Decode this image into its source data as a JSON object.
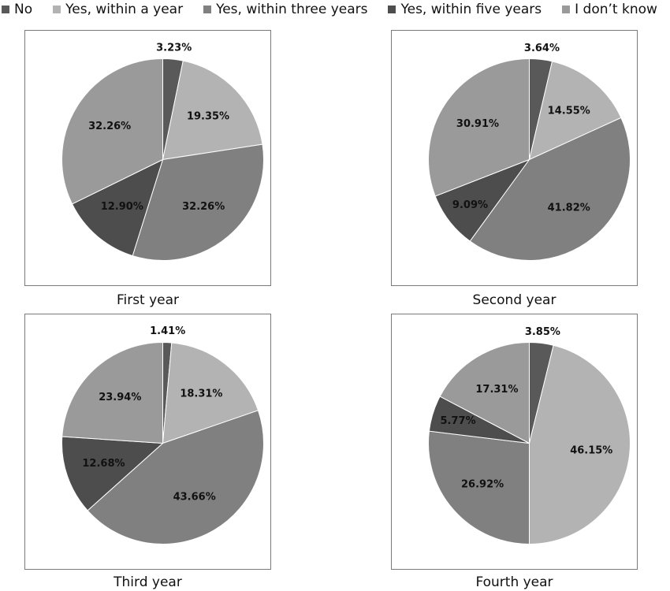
{
  "legend": [
    {
      "label": "No",
      "color": "#595959"
    },
    {
      "label": "Yes, within a year",
      "color": "#b3b3b3"
    },
    {
      "label": "Yes, within three years",
      "color": "#808080"
    },
    {
      "label": "Yes, within five years",
      "color": "#4d4d4d"
    },
    {
      "label": "I don’t know",
      "color": "#9a9a9a"
    }
  ],
  "chart_data": [
    {
      "type": "pie",
      "title": "First year",
      "categories": [
        "No",
        "Yes, within a year",
        "Yes, within three years",
        "Yes, within five years",
        "I don’t know"
      ],
      "values": [
        3.23,
        19.35,
        32.26,
        12.9,
        32.26
      ],
      "labels": [
        "3.23%",
        "19.35%",
        "32.26%",
        "12.90%",
        "32.26%"
      ]
    },
    {
      "type": "pie",
      "title": "Second year",
      "categories": [
        "No",
        "Yes, within a year",
        "Yes, within three years",
        "Yes, within five years",
        "I don’t know"
      ],
      "values": [
        3.64,
        14.55,
        41.82,
        9.09,
        30.91
      ],
      "labels": [
        "3.64%",
        "14.55%",
        "41.82%",
        "9.09%",
        "30.91%"
      ]
    },
    {
      "type": "pie",
      "title": "Third year",
      "categories": [
        "No",
        "Yes, within a year",
        "Yes, within three years",
        "Yes, within five years",
        "I don’t know"
      ],
      "values": [
        1.41,
        18.31,
        43.66,
        12.68,
        23.94
      ],
      "labels": [
        "1.41%",
        "18.31%",
        "43.66%",
        "12.68%",
        "23.94%"
      ]
    },
    {
      "type": "pie",
      "title": "Fourth year",
      "categories": [
        "No",
        "Yes, within a year",
        "Yes, within three years",
        "Yes, within five years",
        "I don’t know"
      ],
      "values": [
        3.85,
        46.15,
        26.92,
        5.77,
        17.31
      ],
      "labels": [
        "3.85%",
        "46.15%",
        "26.92%",
        "5.77%",
        "17.31%"
      ]
    }
  ]
}
